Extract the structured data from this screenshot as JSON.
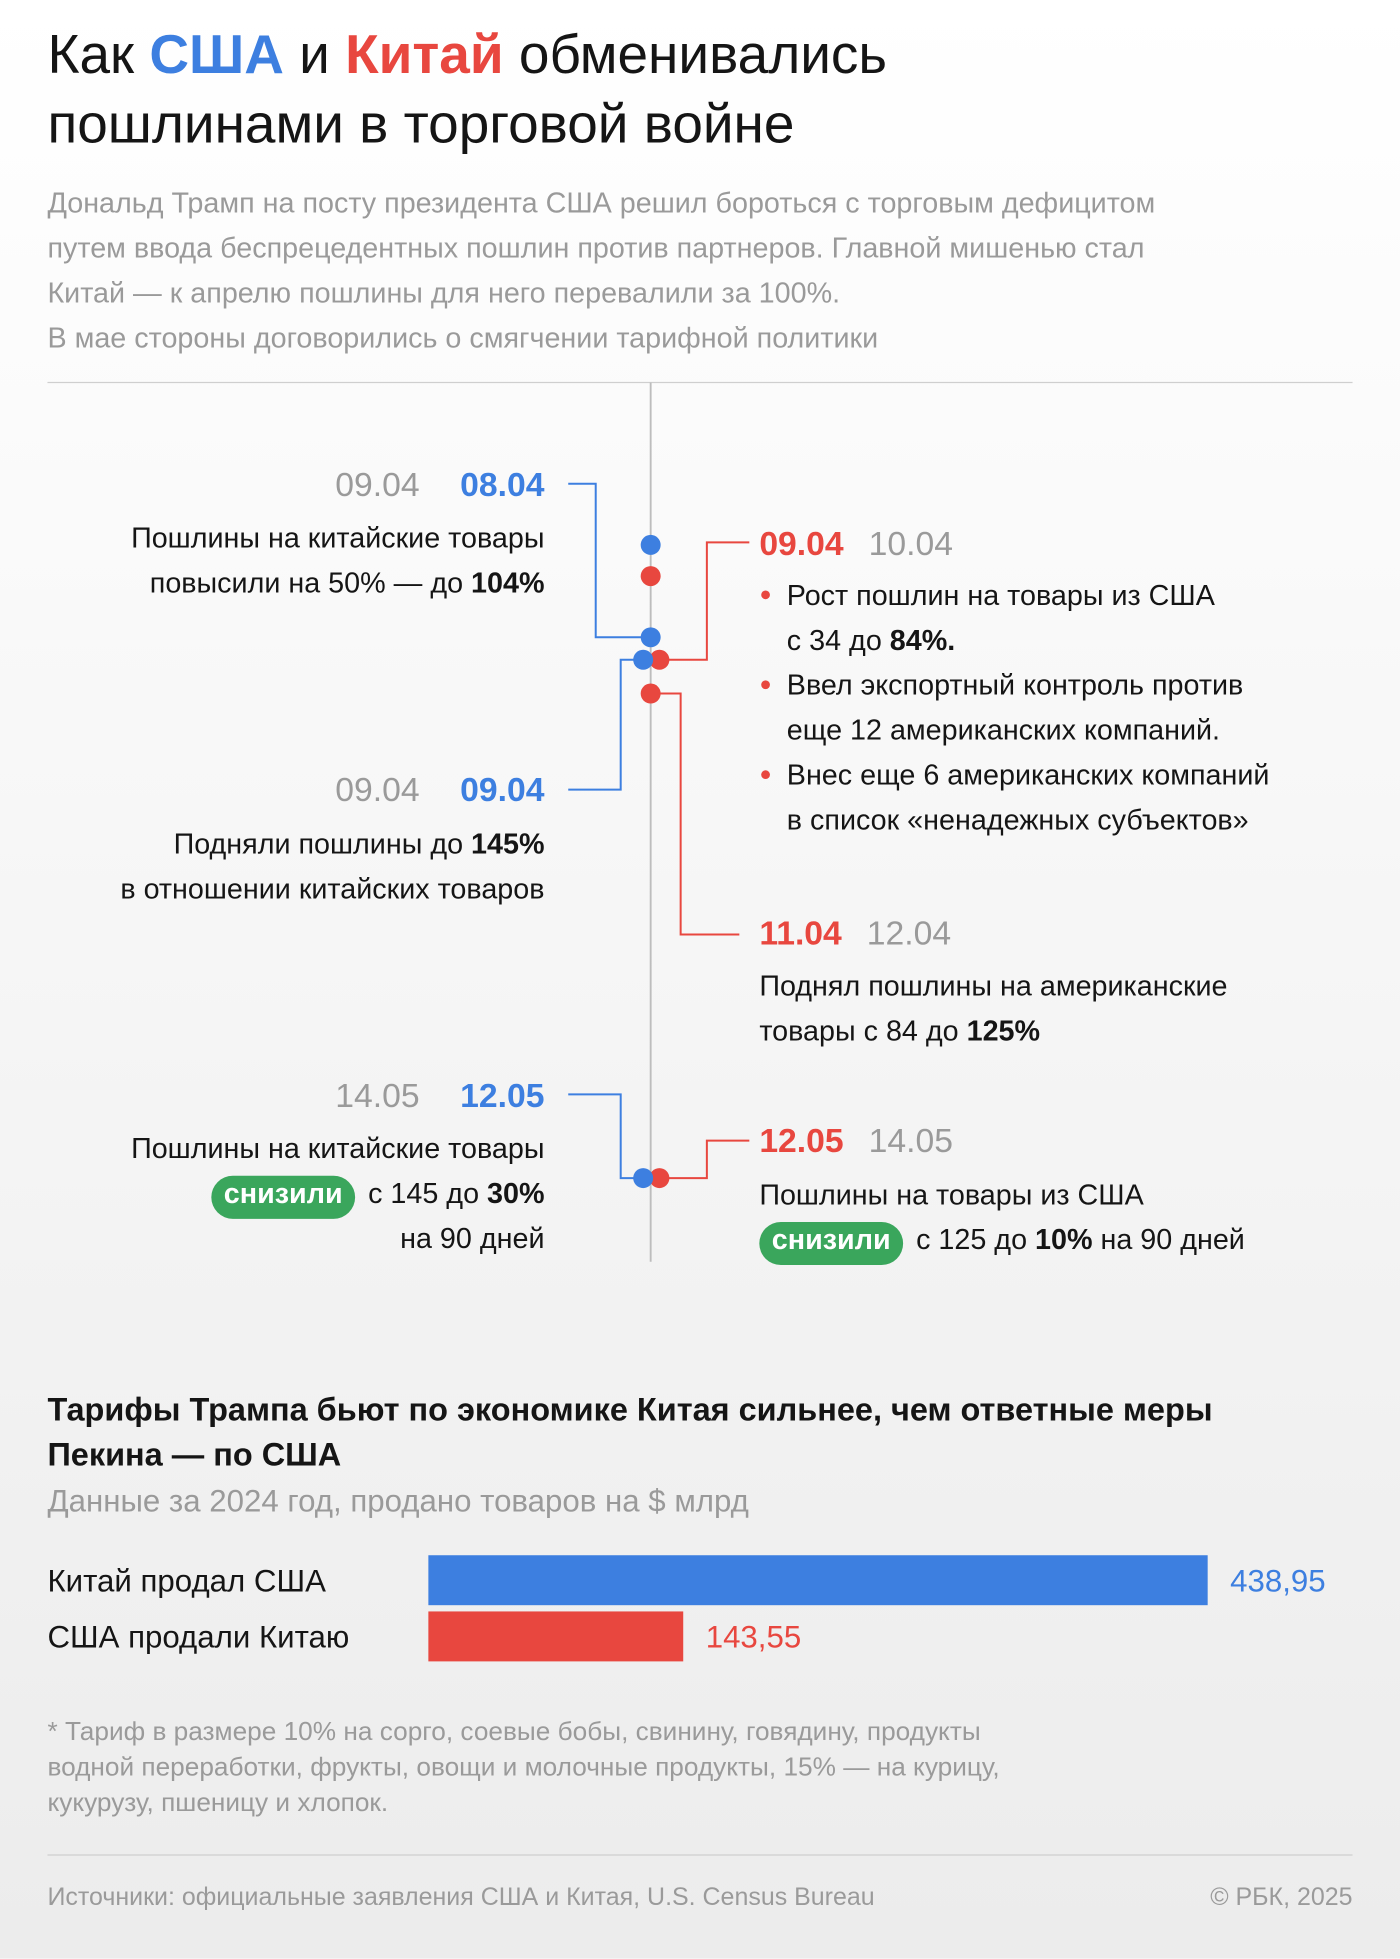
{
  "header": {
    "title_parts": [
      [
        {
          "t": "Как "
        },
        {
          "blue": "США"
        },
        {
          "t": " и "
        },
        {
          "red": "Китай"
        },
        {
          "t": " обменивались"
        }
      ],
      [
        {
          "t": "пошлинами в торговой войне"
        }
      ]
    ],
    "subtitle": [
      "Дональд Трамп на посту президента США решил бороться с торговым дефицитом",
      "путем ввода беспрецедентных пошлин против партнеров. Главной мишенью стал",
      "Китай — к апрелю пошлины для него перевалили за 100%.",
      "В мае стороны договорились о смягчении тарифной политики"
    ]
  },
  "timeline": {
    "events": [
      {
        "side": "left",
        "alt_date": "09.04",
        "date": "08.04",
        "lines": [
          [
            {
              "t": "Пошлины на китайские товары"
            }
          ],
          [
            {
              "t": "повысили на 50% — до "
            },
            {
              "b": "104%"
            }
          ]
        ]
      },
      {
        "side": "right",
        "date": "09.04",
        "alt_date": "10.04",
        "bullets": [
          [
            [
              {
                "t": "Рост пошлин на товары из США"
              }
            ],
            [
              {
                "t": "с 34 до "
              },
              {
                "b": "84%."
              }
            ]
          ],
          [
            [
              {
                "t": "Ввел экспортный контроль против"
              }
            ],
            [
              {
                "t": "еще 12 американских компаний."
              }
            ]
          ],
          [
            [
              {
                "t": "Внес еще 6 американских компаний"
              }
            ],
            [
              {
                "t": "в список «ненадежных субъектов»"
              }
            ]
          ]
        ]
      },
      {
        "side": "left",
        "alt_date": "09.04",
        "date": "09.04",
        "lines": [
          [
            {
              "t": "Подняли пошлины до "
            },
            {
              "b": "145%"
            }
          ],
          [
            {
              "t": "в отношении китайских товаров"
            }
          ]
        ]
      },
      {
        "side": "right",
        "date": "11.04",
        "alt_date": "12.04",
        "lines": [
          [
            {
              "t": "Поднял пошлины на американские"
            }
          ],
          [
            {
              "t": "товары с 84 до "
            },
            {
              "b": "125%"
            }
          ]
        ]
      },
      {
        "side": "left",
        "alt_date": "14.05",
        "date": "12.05",
        "lines": [
          [
            {
              "t": "Пошлины на китайские товары"
            }
          ],
          [
            {
              "pill": "снизили"
            },
            {
              "t": " с 145 до "
            },
            {
              "b": "30%"
            }
          ],
          [
            {
              "t": "на 90 дней"
            }
          ]
        ]
      },
      {
        "side": "right",
        "date": "12.05",
        "alt_date": "14.05",
        "lines": [
          [
            {
              "t": "Пошлины на товары из США"
            }
          ],
          [
            {
              "pill": "снизили"
            },
            {
              "t": " с 125 до "
            },
            {
              "b": "10%"
            },
            {
              "t": " на 90 дней"
            }
          ]
        ]
      }
    ]
  },
  "chart_data": {
    "type": "bar",
    "orientation": "horizontal",
    "title": [
      "Тарифы Трампа бьют по экономике Китая сильнее, чем ответные меры",
      "Пекина — по США"
    ],
    "subtitle": "Данные за 2024 год, продано товаров на $ млрд",
    "categories": [
      "Китай продал США",
      "США продали Китаю"
    ],
    "values": [
      438.95,
      143.55
    ],
    "value_labels": [
      "438,95",
      "143,55"
    ],
    "colors": [
      "#3d7fe0",
      "#e8473f"
    ]
  },
  "footnote": [
    "* Тариф в размере 10% на сорго, соевые бобы, свинину, говядину, продукты",
    "водной переработки, фрукты, овощи и молочные продукты, 15% — на курицу,",
    "кукурузу, пшеницу и хлопок."
  ],
  "footer": {
    "sources": "Источники: официальные заявления США и Китая, U.S. Census Bureau",
    "copyright": "© РБК, 2025"
  }
}
